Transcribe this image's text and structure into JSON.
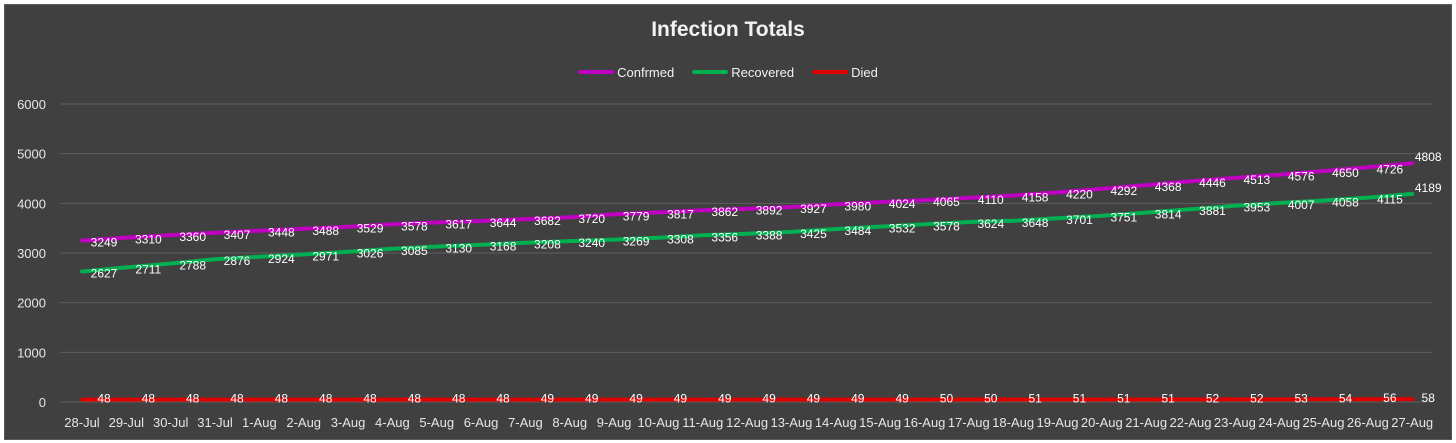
{
  "chart_data": {
    "type": "line",
    "title": "Infection Totals",
    "xlabel": "",
    "ylabel": "",
    "ylim": [
      0,
      6000
    ],
    "yticks": [
      0,
      1000,
      2000,
      3000,
      4000,
      5000,
      6000
    ],
    "grid": true,
    "legend_position": "top",
    "categories": [
      "28-Jul",
      "29-Jul",
      "30-Jul",
      "31-Jul",
      "1-Aug",
      "2-Aug",
      "3-Aug",
      "4-Aug",
      "5-Aug",
      "6-Aug",
      "7-Aug",
      "8-Aug",
      "9-Aug",
      "10-Aug",
      "11-Aug",
      "12-Aug",
      "13-Aug",
      "14-Aug",
      "15-Aug",
      "16-Aug",
      "17-Aug",
      "18-Aug",
      "19-Aug",
      "20-Aug",
      "21-Aug",
      "22-Aug",
      "23-Aug",
      "24-Aug",
      "25-Aug",
      "26-Aug",
      "27-Aug"
    ],
    "series": [
      {
        "name": "Confrmed",
        "color": "#c000c0",
        "values": [
          3249,
          3310,
          3360,
          3407,
          3448,
          3488,
          3529,
          3578,
          3617,
          3644,
          3682,
          3720,
          3779,
          3817,
          3862,
          3892,
          3927,
          3980,
          4024,
          4065,
          4110,
          4158,
          4220,
          4292,
          4368,
          4446,
          4513,
          4576,
          4650,
          4726,
          4808
        ]
      },
      {
        "name": "Recovered",
        "color": "#00b050",
        "values": [
          2627,
          2711,
          2788,
          2876,
          2924,
          2971,
          3026,
          3085,
          3130,
          3168,
          3208,
          3240,
          3269,
          3308,
          3356,
          3388,
          3425,
          3484,
          3532,
          3578,
          3624,
          3648,
          3701,
          3751,
          3814,
          3881,
          3953,
          4007,
          4058,
          4115,
          4189
        ]
      },
      {
        "name": "Died",
        "color": "#e00000",
        "values": [
          48,
          48,
          48,
          48,
          48,
          48,
          48,
          48,
          48,
          48,
          49,
          49,
          49,
          49,
          49,
          49,
          49,
          49,
          49,
          50,
          50,
          51,
          51,
          51,
          51,
          52,
          52,
          53,
          54,
          56,
          58
        ]
      }
    ]
  }
}
